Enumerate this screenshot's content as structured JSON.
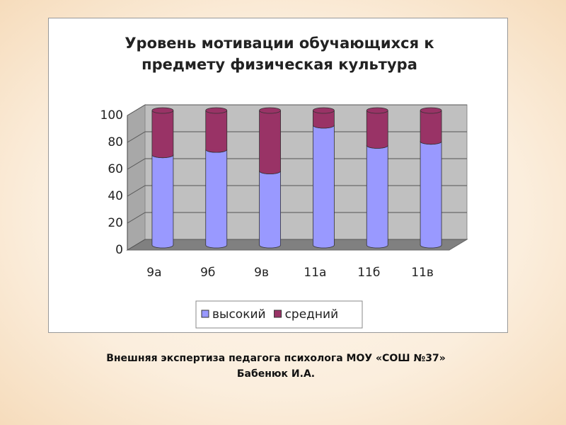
{
  "chart_data": {
    "type": "stacked_bar_3d",
    "title": "Уровень мотивации обучающихся к предмету физическая культура",
    "categories": [
      "9а",
      "9б",
      "9в",
      "11а",
      "11б",
      "11в"
    ],
    "series": [
      {
        "name": "высокий",
        "color": "#9999ff",
        "values": [
          67,
          71,
          55,
          89,
          74,
          77
        ]
      },
      {
        "name": "средний",
        "color": "#993366",
        "values": [
          33,
          29,
          45,
          11,
          26,
          23
        ]
      }
    ],
    "ylim": [
      0,
      100
    ],
    "yticks": [
      0,
      20,
      40,
      60,
      80,
      100
    ],
    "grid": true,
    "legend": "bottom"
  },
  "caption": [
    "Внешняя экспертиза педагога психолога МОУ «СОШ №37»",
    "Бабенюк И.А."
  ]
}
